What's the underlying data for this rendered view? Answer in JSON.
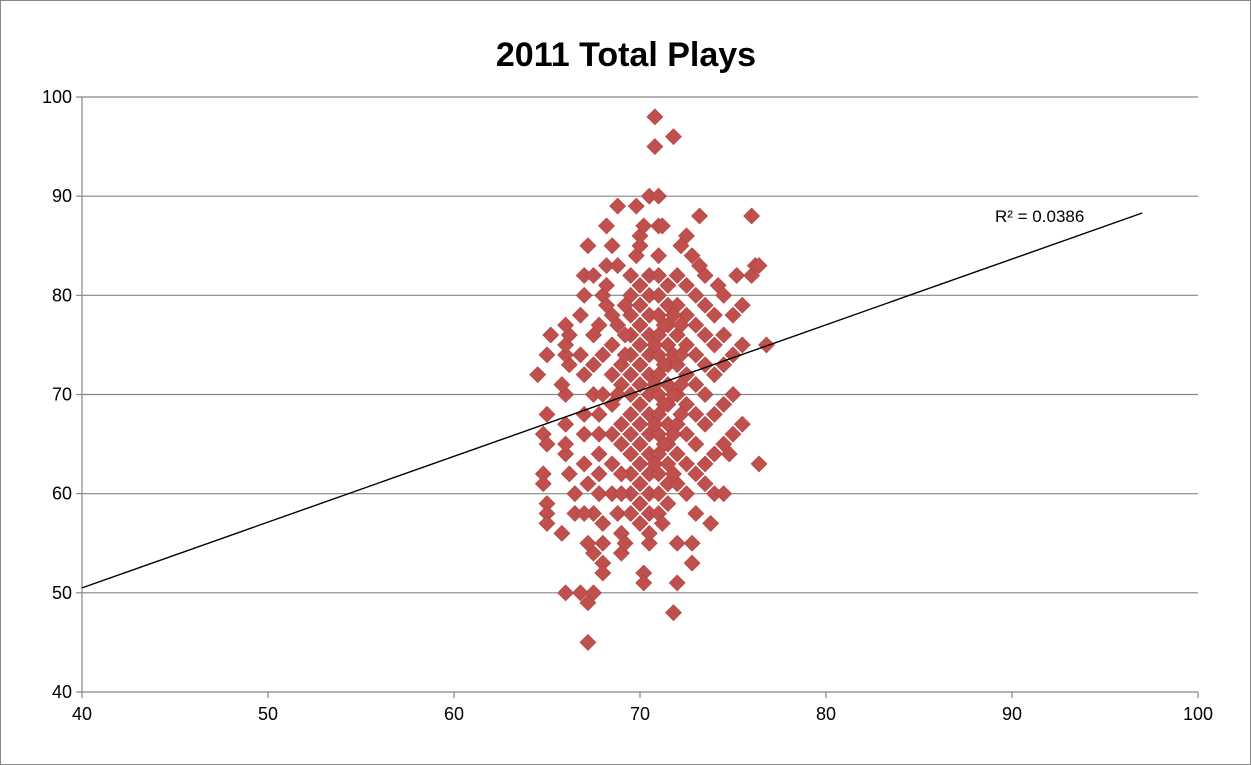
{
  "chart_data": {
    "type": "scatter",
    "title": "2011 Total Plays",
    "xlabel": "",
    "ylabel": "",
    "xlim": [
      40,
      100
    ],
    "ylim": [
      40,
      100
    ],
    "xticks": [
      40,
      50,
      60,
      70,
      80,
      90,
      100
    ],
    "yticks": [
      40,
      50,
      60,
      70,
      80,
      90,
      100
    ],
    "grid": "horizontal",
    "marker": "diamond",
    "marker_color": "#C0504D",
    "trendline": {
      "type": "linear",
      "x": [
        40,
        97
      ],
      "y": [
        50.5,
        88.3
      ],
      "color": "#000000",
      "r2_label": "R² = 0.0386"
    },
    "points": [
      [
        64.5,
        72
      ],
      [
        65,
        74
      ],
      [
        65.2,
        76
      ],
      [
        65,
        68
      ],
      [
        64.8,
        66
      ],
      [
        65,
        65
      ],
      [
        64.8,
        62
      ],
      [
        64.8,
        61
      ],
      [
        65,
        59
      ],
      [
        65,
        58
      ],
      [
        65,
        57
      ],
      [
        65.8,
        56
      ],
      [
        66,
        50
      ],
      [
        66.8,
        50
      ],
      [
        67.2,
        45
      ],
      [
        67.2,
        49
      ],
      [
        67.5,
        50
      ],
      [
        67.5,
        54
      ],
      [
        67.2,
        55
      ],
      [
        67.5,
        58
      ],
      [
        66.5,
        58
      ],
      [
        67,
        58
      ],
      [
        66.5,
        60
      ],
      [
        66.2,
        62
      ],
      [
        66,
        64
      ],
      [
        66,
        65
      ],
      [
        66,
        67
      ],
      [
        66,
        70
      ],
      [
        65.8,
        71
      ],
      [
        66.2,
        73
      ],
      [
        66,
        74
      ],
      [
        66,
        75
      ],
      [
        66.2,
        76
      ],
      [
        66,
        77
      ],
      [
        66.8,
        78
      ],
      [
        67,
        80
      ],
      [
        67,
        82
      ],
      [
        67.2,
        85
      ],
      [
        67.5,
        76
      ],
      [
        67.5,
        73
      ],
      [
        67.5,
        70
      ],
      [
        67.8,
        68
      ],
      [
        67.8,
        66
      ],
      [
        67.8,
        64
      ],
      [
        67.8,
        62
      ],
      [
        67.8,
        60
      ],
      [
        68,
        57
      ],
      [
        68,
        55
      ],
      [
        68,
        53
      ],
      [
        68,
        52
      ],
      [
        68,
        80
      ],
      [
        68.2,
        83
      ],
      [
        68.5,
        85
      ],
      [
        68.2,
        87
      ],
      [
        68.8,
        89
      ],
      [
        68.5,
        78
      ],
      [
        68.5,
        75
      ],
      [
        68.5,
        72
      ],
      [
        68.5,
        69
      ],
      [
        68.5,
        66
      ],
      [
        68.5,
        63
      ],
      [
        68.5,
        60
      ],
      [
        68.8,
        58
      ],
      [
        69,
        56
      ],
      [
        69,
        54
      ],
      [
        69.2,
        55
      ],
      [
        69.5,
        58
      ],
      [
        69.5,
        60
      ],
      [
        69.5,
        62
      ],
      [
        69.5,
        64
      ],
      [
        69.5,
        66
      ],
      [
        69.5,
        68
      ],
      [
        69.5,
        70
      ],
      [
        69.5,
        72
      ],
      [
        69.5,
        74
      ],
      [
        69.5,
        76
      ],
      [
        69.5,
        78
      ],
      [
        69.5,
        80
      ],
      [
        69.5,
        82
      ],
      [
        69.8,
        84
      ],
      [
        69.8,
        89
      ],
      [
        70,
        86
      ],
      [
        70,
        85
      ],
      [
        70.2,
        87
      ],
      [
        70,
        81
      ],
      [
        70,
        79
      ],
      [
        70,
        77
      ],
      [
        70,
        75
      ],
      [
        70,
        73
      ],
      [
        70,
        71
      ],
      [
        70,
        69
      ],
      [
        70,
        67
      ],
      [
        70,
        65
      ],
      [
        70,
        63
      ],
      [
        70,
        61
      ],
      [
        70,
        59
      ],
      [
        70,
        57
      ],
      [
        70.2,
        52
      ],
      [
        70.2,
        51
      ],
      [
        70.5,
        55
      ],
      [
        70.5,
        56
      ],
      [
        70.5,
        58
      ],
      [
        70.5,
        60
      ],
      [
        70.5,
        62
      ],
      [
        70.5,
        64
      ],
      [
        70.5,
        66
      ],
      [
        70.5,
        68
      ],
      [
        70.5,
        70
      ],
      [
        70.5,
        72
      ],
      [
        70.5,
        74
      ],
      [
        70.5,
        76
      ],
      [
        70.5,
        78
      ],
      [
        70.5,
        80
      ],
      [
        70.5,
        82
      ],
      [
        70.5,
        90
      ],
      [
        70.8,
        98
      ],
      [
        70.8,
        95
      ],
      [
        71,
        90
      ],
      [
        71,
        87
      ],
      [
        71.2,
        87
      ],
      [
        71,
        84
      ],
      [
        71,
        82
      ],
      [
        71,
        80
      ],
      [
        71,
        78
      ],
      [
        71,
        76
      ],
      [
        71,
        74
      ],
      [
        71,
        72
      ],
      [
        71,
        70
      ],
      [
        71,
        68
      ],
      [
        71,
        66
      ],
      [
        71,
        64
      ],
      [
        71,
        62
      ],
      [
        71,
        60
      ],
      [
        71,
        58
      ],
      [
        71.2,
        57
      ],
      [
        71.5,
        59
      ],
      [
        71.5,
        61
      ],
      [
        71.5,
        63
      ],
      [
        71.5,
        65
      ],
      [
        71.5,
        67
      ],
      [
        71.5,
        69
      ],
      [
        71.5,
        71
      ],
      [
        71.5,
        73
      ],
      [
        71.5,
        75
      ],
      [
        71.5,
        77
      ],
      [
        71.5,
        79
      ],
      [
        71.5,
        81
      ],
      [
        71.8,
        96
      ],
      [
        71.8,
        48
      ],
      [
        72,
        51
      ],
      [
        72,
        55
      ],
      [
        72,
        61
      ],
      [
        72,
        64
      ],
      [
        72,
        67
      ],
      [
        72,
        70
      ],
      [
        72,
        73
      ],
      [
        72,
        76
      ],
      [
        72,
        79
      ],
      [
        72,
        82
      ],
      [
        72.2,
        85
      ],
      [
        72.5,
        86
      ],
      [
        72.8,
        84
      ],
      [
        72.5,
        81
      ],
      [
        72.5,
        78
      ],
      [
        72.5,
        75
      ],
      [
        72.5,
        72
      ],
      [
        72.5,
        69
      ],
      [
        72.5,
        66
      ],
      [
        72.5,
        63
      ],
      [
        72.5,
        60
      ],
      [
        72.8,
        55
      ],
      [
        72.8,
        53
      ],
      [
        73,
        58
      ],
      [
        73,
        62
      ],
      [
        73,
        65
      ],
      [
        73,
        68
      ],
      [
        73,
        71
      ],
      [
        73,
        74
      ],
      [
        73,
        77
      ],
      [
        73,
        80
      ],
      [
        73.2,
        83
      ],
      [
        73.2,
        88
      ],
      [
        73.5,
        82
      ],
      [
        73.5,
        79
      ],
      [
        73.5,
        76
      ],
      [
        73.5,
        73
      ],
      [
        73.5,
        70
      ],
      [
        73.5,
        67
      ],
      [
        73.5,
        63
      ],
      [
        73.5,
        61
      ],
      [
        73.8,
        57
      ],
      [
        74,
        60
      ],
      [
        74,
        64
      ],
      [
        74,
        68
      ],
      [
        74,
        72
      ],
      [
        74,
        75
      ],
      [
        74,
        78
      ],
      [
        74.2,
        81
      ],
      [
        74.5,
        80
      ],
      [
        74.5,
        76
      ],
      [
        74.5,
        73
      ],
      [
        74.5,
        69
      ],
      [
        74.5,
        65
      ],
      [
        74.5,
        60
      ],
      [
        74.8,
        64
      ],
      [
        75,
        66
      ],
      [
        75,
        70
      ],
      [
        75,
        74
      ],
      [
        75,
        78
      ],
      [
        75.2,
        82
      ],
      [
        75.5,
        79
      ],
      [
        75.5,
        75
      ],
      [
        75.5,
        67
      ],
      [
        76,
        88
      ],
      [
        76,
        82
      ],
      [
        76.2,
        83
      ],
      [
        76.4,
        83
      ],
      [
        76.4,
        63
      ],
      [
        76.8,
        75
      ],
      [
        68,
        70
      ],
      [
        68,
        74
      ],
      [
        68.8,
        77
      ],
      [
        69,
        73
      ],
      [
        69,
        71
      ],
      [
        69,
        67
      ],
      [
        69,
        65
      ],
      [
        69,
        62
      ],
      [
        69,
        60
      ],
      [
        68.8,
        70
      ],
      [
        69.2,
        74
      ],
      [
        69.2,
        76
      ],
      [
        69.2,
        79
      ],
      [
        70.8,
        75
      ],
      [
        70.8,
        71
      ],
      [
        70.8,
        67
      ],
      [
        70.8,
        63
      ],
      [
        71.3,
        77
      ],
      [
        71.3,
        73
      ],
      [
        71.3,
        69
      ],
      [
        71.3,
        65
      ],
      [
        71.8,
        78
      ],
      [
        71.8,
        74
      ],
      [
        71.8,
        70
      ],
      [
        71.8,
        66
      ],
      [
        71.8,
        62
      ],
      [
        72.2,
        77
      ],
      [
        72.2,
        74
      ],
      [
        72.2,
        71
      ],
      [
        72.2,
        68
      ],
      [
        67,
        72
      ],
      [
        67,
        68
      ],
      [
        67,
        66
      ],
      [
        67,
        63
      ],
      [
        67.2,
        61
      ],
      [
        67.8,
        77
      ],
      [
        68.2,
        79
      ],
      [
        68.2,
        81
      ],
      [
        68.8,
        83
      ],
      [
        67.5,
        82
      ],
      [
        66.8,
        74
      ]
    ]
  }
}
